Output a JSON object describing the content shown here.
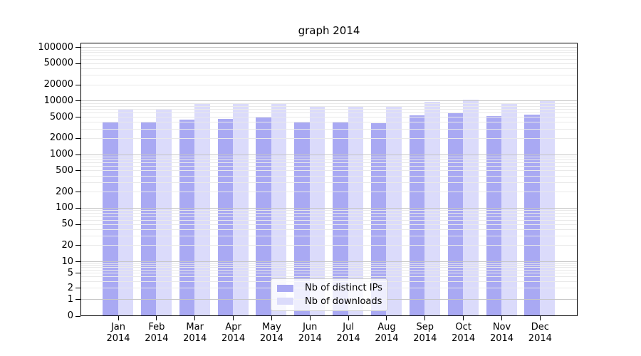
{
  "title": "graph 2014",
  "chart_data": {
    "type": "bar",
    "title": "graph 2014",
    "categories": [
      "Jan 2014",
      "Feb 2014",
      "Mar 2014",
      "Apr 2014",
      "May 2014",
      "Jun 2014",
      "Jul 2014",
      "Aug 2014",
      "Sep 2014",
      "Oct 2014",
      "Nov 2014",
      "Dec 2014"
    ],
    "series": [
      {
        "name": "Nb of distinct IPs",
        "color": "#a9a9f3",
        "values": [
          4100,
          4000,
          4500,
          4700,
          4900,
          4100,
          4100,
          3900,
          5400,
          6000,
          5200,
          5600
        ]
      },
      {
        "name": "Nb of downloads",
        "color": "#dbdbfb",
        "values": [
          7000,
          7100,
          8700,
          8900,
          9100,
          7800,
          7900,
          7700,
          9800,
          10700,
          9100,
          10100
        ]
      }
    ],
    "xlabel": "",
    "ylabel": "",
    "yscale": "symlog",
    "ytick_labels": [
      0,
      1,
      2,
      5,
      10,
      20,
      50,
      100,
      200,
      500,
      1000,
      2000,
      5000,
      10000,
      20000,
      50000,
      100000
    ],
    "ylim": [
      0,
      122000
    ],
    "grid": true,
    "legend_position": "lower center"
  },
  "colors": {
    "grid_major": "#c6c6c6",
    "grid_minor": "#e9e9e9",
    "axis": "#000000",
    "background": "#ffffff"
  }
}
